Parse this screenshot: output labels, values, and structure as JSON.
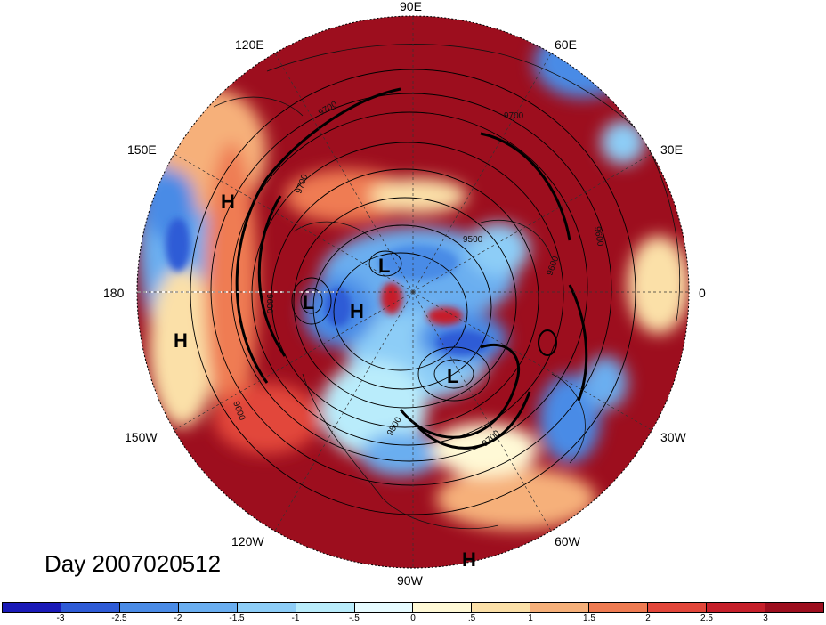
{
  "title": "Day 2007020512",
  "map": {
    "projection": "polar stereographic, North Pole centered",
    "longitude_labels": {
      "lon_90e": "90E",
      "lon_60e": "60E",
      "lon_30e": "30E",
      "lon_0": "0",
      "lon_30w": "30W",
      "lon_60w": "60W",
      "lon_90w": "90W",
      "lon_120w": "120W",
      "lon_150w": "150W",
      "lon_180": "180",
      "lon_150e": "150E",
      "lon_120e": "120E"
    },
    "pressure_centers": [
      {
        "type": "H",
        "label": "H"
      },
      {
        "type": "H",
        "label": "H"
      },
      {
        "type": "L",
        "label": "L"
      },
      {
        "type": "L",
        "label": "L"
      },
      {
        "type": "H",
        "label": "H"
      },
      {
        "type": "L",
        "label": "L"
      },
      {
        "type": "H",
        "label": "H"
      }
    ],
    "contour_labels": [
      "9700",
      "9600",
      "9500",
      "9700",
      "9600",
      "9600",
      "9500",
      "9600",
      "9700",
      "9700"
    ]
  },
  "colorbar": {
    "colors": [
      "#1a1ab8",
      "#2e5bd6",
      "#4a8be6",
      "#6aaef0",
      "#8dcdf7",
      "#b9ecfb",
      "#e6fbff",
      "#fff9d6",
      "#fbe0a8",
      "#f6b07a",
      "#ef7b52",
      "#e2463a",
      "#c61f2a",
      "#9d0e1e"
    ],
    "tick_labels": [
      "-3",
      "-2.5",
      "-2",
      "-1.5",
      "-1",
      "-.5",
      "0",
      ".5",
      "1",
      "1.5",
      "2",
      "2.5",
      "3"
    ]
  }
}
